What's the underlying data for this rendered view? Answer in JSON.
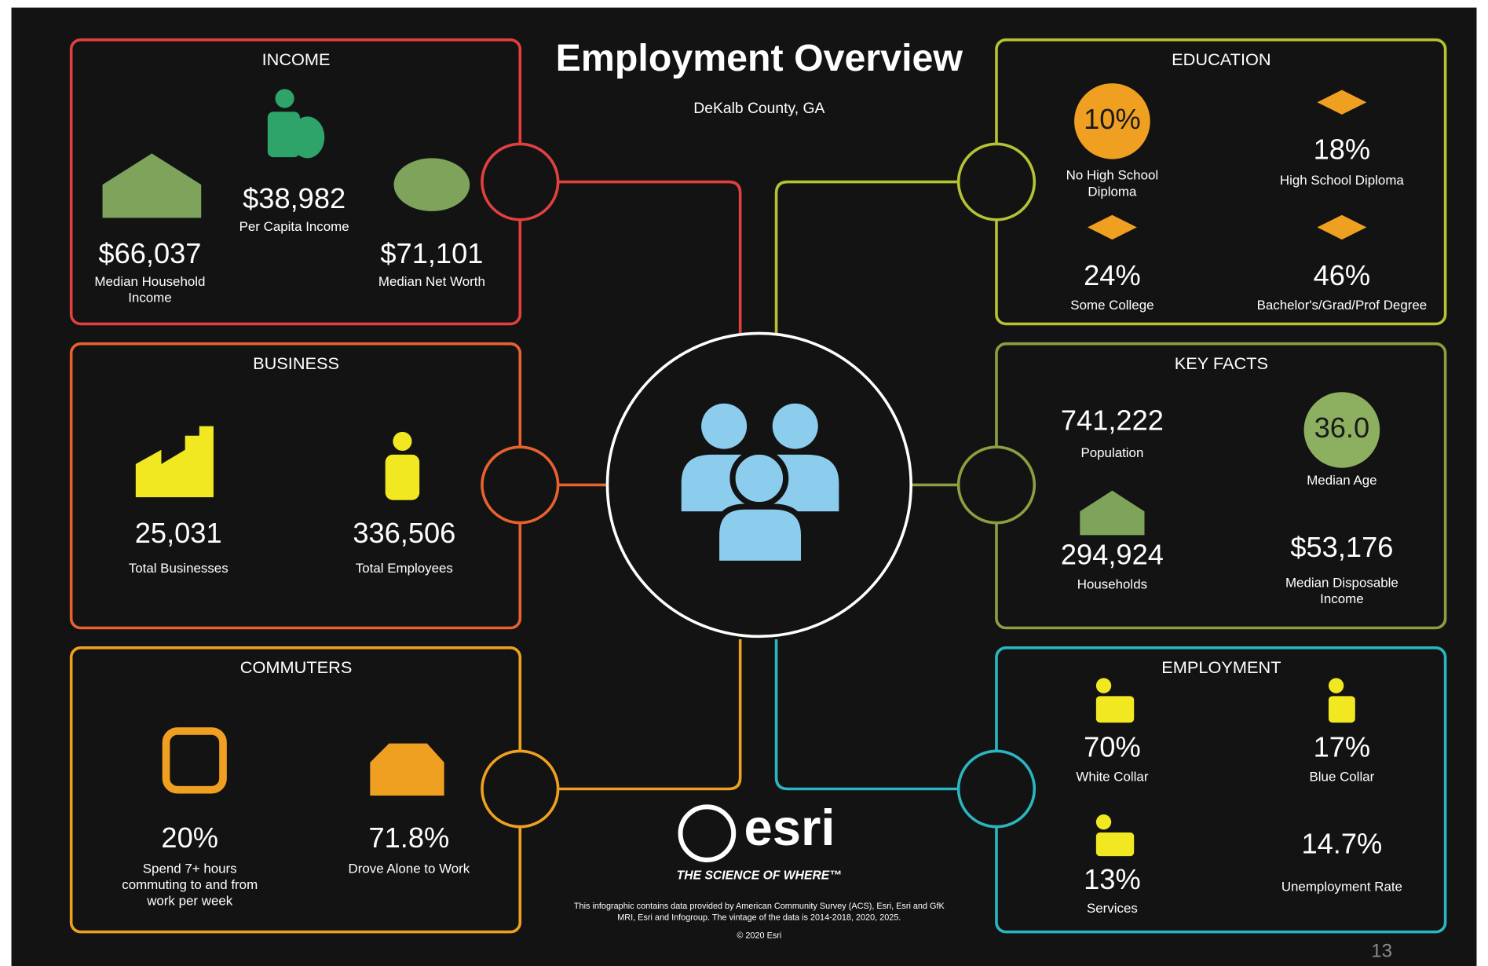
{
  "title": "Employment Overview",
  "subtitle": "DeKalb County, GA",
  "sections": [
    {
      "heading": "INCOME",
      "items": [
        {
          "value": "$66,037",
          "label": [
            "Median Household",
            "Income"
          ]
        },
        {
          "value": "$38,982",
          "label": [
            "Per Capita Income"
          ]
        },
        {
          "value": "$71,101",
          "label": [
            "Median Net Worth"
          ]
        }
      ]
    },
    {
      "heading": "BUSINESS",
      "items": [
        {
          "value": "25,031",
          "label": [
            "Total Businesses"
          ]
        },
        {
          "value": "336,506",
          "label": [
            "Total Employees"
          ]
        }
      ]
    },
    {
      "heading": "COMMUTERS",
      "items": [
        {
          "value": "20%",
          "label": [
            "Spend 7+ hours",
            "commuting to and from",
            "work per week"
          ]
        },
        {
          "value": "71.8%",
          "label": [
            "Drove Alone to Work"
          ]
        }
      ]
    },
    {
      "heading": "EDUCATION",
      "items": [
        {
          "value": "10%",
          "label": [
            "No High School",
            "Diploma"
          ]
        },
        {
          "value": "18%",
          "label": [
            "High School Diploma"
          ]
        },
        {
          "value": "24%",
          "label": [
            "Some College"
          ]
        },
        {
          "value": "46%",
          "label": [
            "Bachelor's/Grad/Prof Degree"
          ]
        }
      ]
    },
    {
      "heading": "KEY FACTS",
      "items": [
        {
          "value": "741,222",
          "label": [
            "Population"
          ]
        },
        {
          "value": "36.0",
          "label": [
            "Median Age"
          ]
        },
        {
          "value": "294,924",
          "label": [
            "Households"
          ]
        },
        {
          "value": "$53,176",
          "label": [
            "Median Disposable",
            "Income"
          ]
        }
      ]
    },
    {
      "heading": "EMPLOYMENT",
      "items": [
        {
          "value": "70%",
          "label": [
            "White Collar"
          ]
        },
        {
          "value": "17%",
          "label": [
            "Blue Collar"
          ]
        },
        {
          "value": "13%",
          "label": [
            "Services"
          ]
        },
        {
          "value": "14.7%",
          "label": [
            "Unemployment Rate"
          ]
        }
      ]
    }
  ],
  "footer": {
    "brand": "esri",
    "tagline": "THE SCIENCE OF WHERE™",
    "disclaimer": [
      "This infographic contains data provided by American Community Survey (ACS), Esri, Esri and GfK",
      "MRI, Esri and Infogroup. The vintage of the data is 2014-2018, 2020, 2025."
    ],
    "copyright": "© 2020 Esri",
    "page": "13"
  }
}
